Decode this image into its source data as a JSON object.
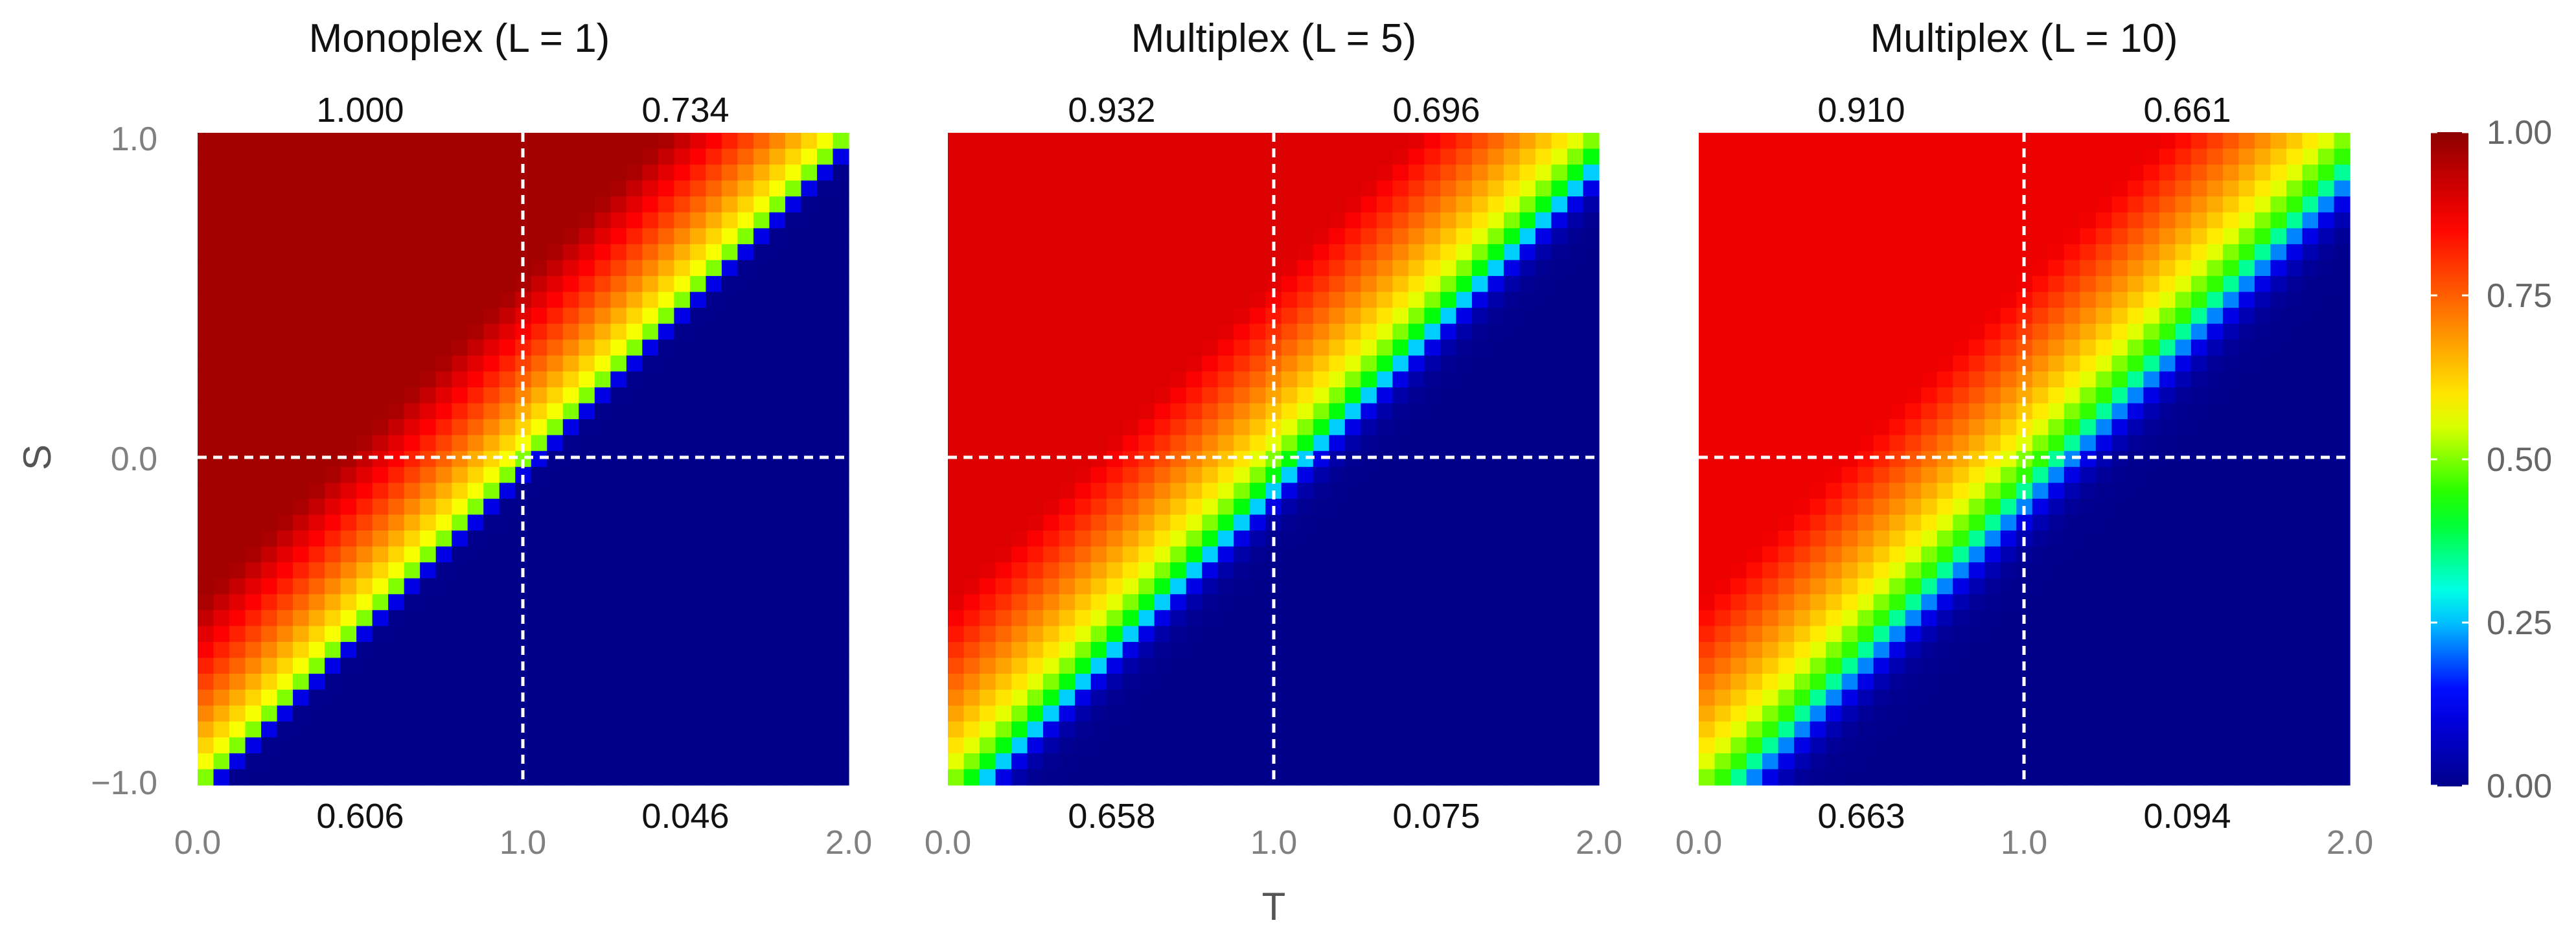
{
  "figure": {
    "xlabel": "T",
    "ylabel": "S",
    "x_ticks": [
      "0.0",
      "1.0",
      "2.0"
    ],
    "y_ticks": [
      "1.0",
      "0.0",
      "−1.0"
    ],
    "colorbar_ticks": [
      "1.00",
      "0.75",
      "0.50",
      "0.25",
      "0.00"
    ]
  },
  "chart_data": [
    {
      "type": "heatmap",
      "title": "Monoplex  (L = 1)",
      "x": {
        "range": [
          0,
          2
        ]
      },
      "y": {
        "range": [
          -1,
          1
        ]
      },
      "grid": true,
      "quadrant_values": {
        "top_left": "1.000",
        "top_right": "0.734",
        "bottom_left": "0.606",
        "bottom_right": "0.046"
      },
      "transition": {
        "center": -1.0,
        "slope": 1.0,
        "width": 0.04,
        "plateau": 0.97,
        "band_width": 0.55,
        "upper_width": 0.25
      }
    },
    {
      "type": "heatmap",
      "title": "Multiplex  (L = 5)",
      "x": {
        "range": [
          0,
          2
        ]
      },
      "y": {
        "range": [
          -1,
          1
        ]
      },
      "grid": true,
      "quadrant_values": {
        "top_left": "0.932",
        "top_right": "0.696",
        "bottom_left": "0.658",
        "bottom_right": "0.075"
      },
      "transition": {
        "center": -1.0,
        "slope": 1.0,
        "width": 0.12,
        "plateau": 0.9,
        "band_width": 0.55,
        "upper_width": 0.25
      }
    },
    {
      "type": "heatmap",
      "title": "Multiplex  (L = 10)",
      "x": {
        "range": [
          0,
          2
        ]
      },
      "y": {
        "range": [
          -1,
          1
        ]
      },
      "grid": true,
      "quadrant_values": {
        "top_left": "0.910",
        "top_right": "0.661",
        "bottom_left": "0.663",
        "bottom_right": "0.094"
      },
      "transition": {
        "center": -1.0,
        "slope": 1.0,
        "width": 0.16,
        "plateau": 0.88,
        "band_width": 0.55,
        "upper_width": 0.25
      }
    }
  ],
  "colorbar": {
    "range": [
      0,
      1
    ],
    "colors": [
      "#00008b",
      "#0000ff",
      "#00ffff",
      "#00ff00",
      "#ffff00",
      "#ff7f00",
      "#ff0000",
      "#8b0000"
    ]
  }
}
